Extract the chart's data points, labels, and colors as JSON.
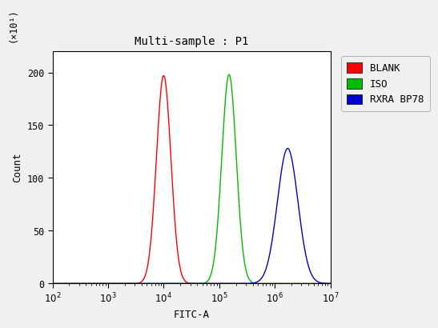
{
  "title": "Multi-sample : P1",
  "xlabel": "FITC-A",
  "ylabel": "Count",
  "y_multiplier_label": "(×10¹)",
  "xlim_log": [
    100,
    10000000.0
  ],
  "ylim": [
    0,
    220
  ],
  "yticks": [
    0,
    50,
    100,
    150,
    200
  ],
  "curves": [
    {
      "label": "BLANK",
      "color": "#ff0000",
      "peak_x_log": 10000,
      "peak_y": 197,
      "sigma_log": 0.13
    },
    {
      "label": "ISO",
      "color": "#00bb00",
      "peak_x_log": 150000,
      "peak_y": 198,
      "sigma_log": 0.13
    },
    {
      "label": "RXRA BP78",
      "color": "#0000cc",
      "peak_x_log": 1700000,
      "peak_y": 128,
      "sigma_log": 0.185
    }
  ],
  "legend_colors": [
    "#ff0000",
    "#00bb00",
    "#0000cc"
  ],
  "legend_labels": [
    "BLANK",
    "ISO",
    "RXRA BP78"
  ],
  "background_color": "#f0f0f0",
  "plot_bg_color": "#ffffff",
  "title_fontsize": 10,
  "axis_label_fontsize": 9,
  "tick_fontsize": 8.5,
  "legend_fontsize": 9
}
